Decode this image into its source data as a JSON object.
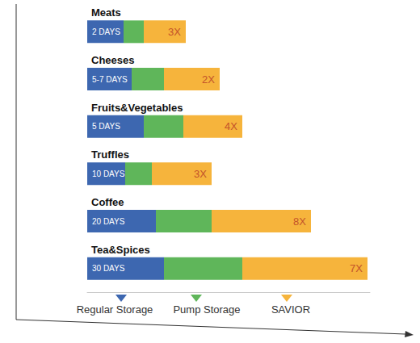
{
  "chart_data": {
    "type": "bar",
    "orientation": "horizontal",
    "stacked": true,
    "categories": [
      "Meats",
      "Cheeses",
      "Fruits&Vegetables",
      "Truffles",
      "Coffee",
      "Tea&Spices"
    ],
    "xlim": [
      0,
      350
    ],
    "tick_labels": false,
    "legend": "bottom",
    "data_labels": false,
    "series": [
      {
        "name": "Regular Storage",
        "color": "#3d67b0",
        "values": [
          45,
          55,
          70,
          47,
          85,
          95
        ],
        "annotations": [
          "2 DAYS",
          "5-7 DAYS",
          "5 DAYS",
          "10 DAYS",
          "20 DAYS",
          "30 DAYS"
        ]
      },
      {
        "name": "Pump Storage",
        "color": "#5fb65a",
        "values": [
          25,
          40,
          49,
          33,
          69,
          97
        ]
      },
      {
        "name": "SAVIOR",
        "color": "#f6b43c",
        "values": [
          52,
          69,
          73,
          74,
          123,
          155
        ],
        "annotations": [
          "3X",
          "2X",
          "4X",
          "3X",
          "8X",
          "7X"
        ]
      }
    ]
  }
}
